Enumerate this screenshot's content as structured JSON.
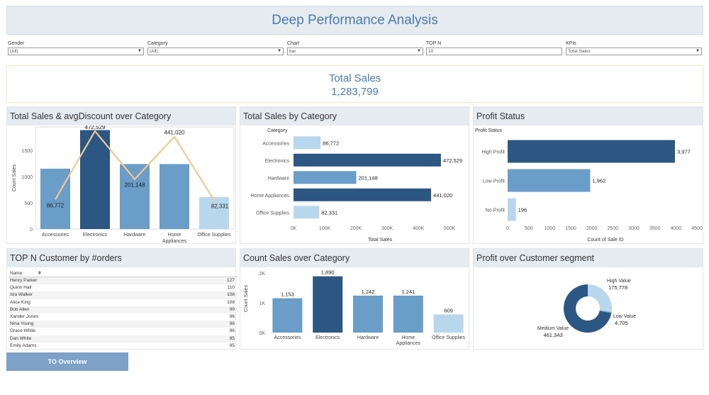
{
  "title": "Deep Performance Analysis",
  "filters": [
    {
      "label": "Gender",
      "value": "(All)"
    },
    {
      "label": "Category",
      "value": "(All)"
    },
    {
      "label": "Chart",
      "value": "bar"
    },
    {
      "label": "TOP N",
      "value": "10"
    },
    {
      "label": "KPIs",
      "value": "Total Sales"
    }
  ],
  "kpi": {
    "label": "Total Sales",
    "value": "1,283,799"
  },
  "panels": {
    "combo": "Total Sales & avgDiscount over Category",
    "sales_by_cat": "Total Sales by Category",
    "profit_status": "Profit Status",
    "top_customers": "TOP N Customer by #orders",
    "count_sales": "Count Sales over Category",
    "segment": "Profit over Customer segment"
  },
  "customers": {
    "header": "Name",
    "rows": [
      {
        "name": "Henry Parker",
        "orders": "127"
      },
      {
        "name": "Quinn Hall",
        "orders": "110"
      },
      {
        "name": "Isla Walker",
        "orders": "108"
      },
      {
        "name": "Alice King",
        "orders": "108"
      },
      {
        "name": "Bob Allen",
        "orders": "99"
      },
      {
        "name": "Xander Jones",
        "orders": "96"
      },
      {
        "name": "Nina Young",
        "orders": "96"
      },
      {
        "name": "Grace White",
        "orders": "96"
      },
      {
        "name": "Dan White",
        "orders": "95"
      },
      {
        "name": "Emily Adams",
        "orders": "95"
      }
    ]
  },
  "button": {
    "label": "TO Overview"
  },
  "colors": {
    "dark": "#2c5783",
    "mid": "#6a9dc8",
    "light": "#b9d7ec",
    "line": "#f5c78e",
    "accent": "#4a7ab0"
  },
  "chart_data": [
    {
      "type": "bar",
      "title": "Total Sales & avgDiscount over Category",
      "categories": [
        "Accessories",
        "Electronics",
        "Hardware",
        "Home Appliances",
        "Office Supplies"
      ],
      "ylabel": "Count Sales",
      "yticks": [
        "0",
        "500",
        "1000",
        "1500"
      ],
      "ylim": [
        0,
        1950
      ],
      "series": [
        {
          "values": [
            1153,
            1890,
            1242,
            1241,
            609
          ]
        },
        {
          "type": "line",
          "values": [
            86772,
            472529,
            201148,
            441020,
            82331
          ],
          "labels": [
            "86,772",
            "472,529",
            "201,148",
            "441,020",
            "82,331"
          ]
        }
      ]
    },
    {
      "type": "bar",
      "orientation": "horizontal",
      "title": "Total Sales by Category",
      "categories_title": "Category",
      "categories": [
        "Accessories",
        "Electronics",
        "Hardware",
        "Home Appliances",
        "Office Supplies"
      ],
      "values": [
        86772,
        472529,
        201148,
        441020,
        82331
      ],
      "labels": [
        "86,772",
        "472,529",
        "201,148",
        "441,020",
        "82,331"
      ],
      "xlabel": "Total Sales",
      "xticks": [
        "0K",
        "100K",
        "200K",
        "300K",
        "400K",
        "500K"
      ],
      "xlim": [
        0,
        500000
      ]
    },
    {
      "type": "bar",
      "orientation": "horizontal",
      "title": "Profit Status",
      "categories_title": "Profit Status",
      "categories": [
        "High Profit",
        "Low Profit",
        "No Profit"
      ],
      "values": [
        3977,
        1962,
        196
      ],
      "labels": [
        "3,977",
        "1,962",
        "196"
      ],
      "xlabel": "Count of Sale ID",
      "xticks": [
        "0",
        "500",
        "1000",
        "1500",
        "2000",
        "2500",
        "3000",
        "3500",
        "4000",
        "4500"
      ],
      "xlim": [
        0,
        4500
      ]
    },
    {
      "type": "bar",
      "title": "Count Sales over Category",
      "categories": [
        "Accessories",
        "Electronics",
        "Hardware",
        "Home Appliances",
        "Office Supplies"
      ],
      "values": [
        1153,
        1890,
        1242,
        1241,
        609
      ],
      "labels": [
        "1,153",
        "1,890",
        "1,242",
        "1,241",
        "609"
      ],
      "ylabel": "Count Sales",
      "yticks": [
        "0K",
        "1K",
        "2K"
      ],
      "ylim": [
        0,
        2000
      ]
    },
    {
      "type": "pie",
      "title": "Profit over Customer segment",
      "slices": [
        {
          "name": "Medium Value",
          "value": 461343,
          "label": "461,343"
        },
        {
          "name": "High Value",
          "value": 175778,
          "label": "175,778"
        },
        {
          "name": "Low Value",
          "value": 4705,
          "label": "4,705"
        }
      ]
    }
  ]
}
